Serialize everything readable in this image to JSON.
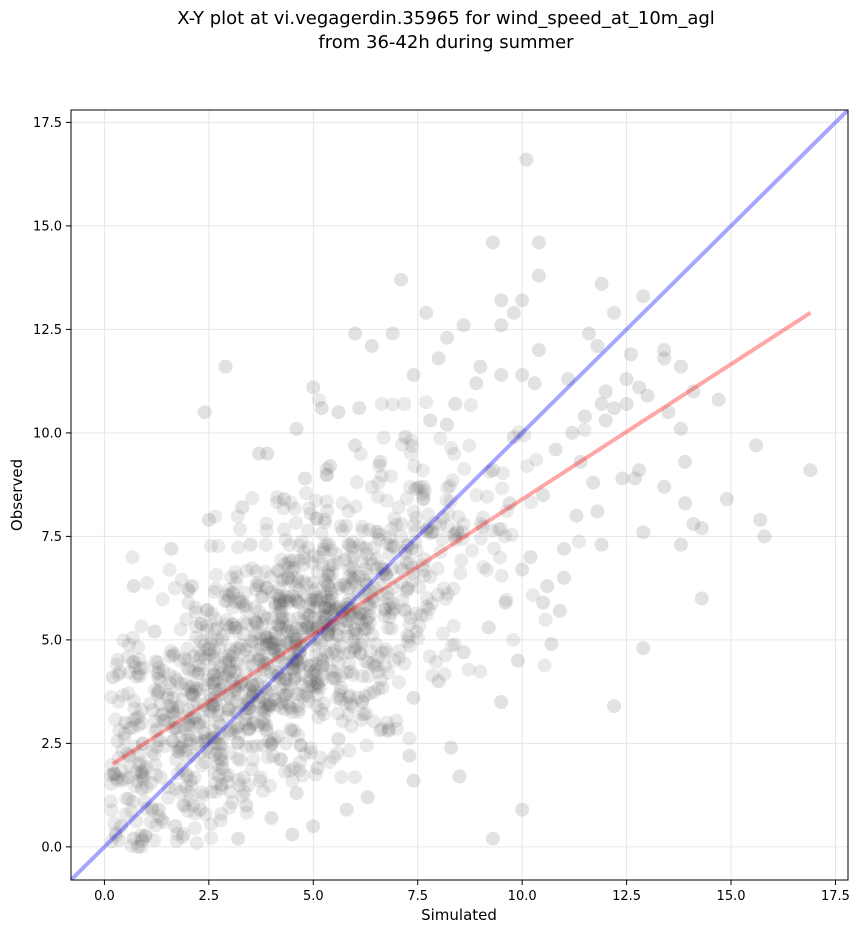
{
  "chart_data": {
    "type": "scatter",
    "title": "X-Y plot at vi.vegagerdin.35965 for wind_speed_at_10m_agl",
    "subtitle": "from 36-42h during summer",
    "xlabel": "Simulated",
    "ylabel": "Observed",
    "xlim": [
      -0.8,
      17.8
    ],
    "ylim": [
      -0.8,
      17.8
    ],
    "xticks": [
      "0.0",
      "2.5",
      "5.0",
      "7.5",
      "10.0",
      "12.5",
      "15.0",
      "17.5"
    ],
    "yticks": [
      "0.0",
      "2.5",
      "5.0",
      "7.5",
      "10.0",
      "12.5",
      "15.0",
      "17.5"
    ],
    "xtick_values": [
      0,
      2.5,
      5,
      7.5,
      10,
      12.5,
      15,
      17.5
    ],
    "ytick_values": [
      0,
      2.5,
      5,
      7.5,
      10,
      12.5,
      15,
      17.5
    ],
    "grid": true,
    "points": [
      [
        10.1,
        16.6
      ],
      [
        9.3,
        14.6
      ],
      [
        10.4,
        14.6
      ],
      [
        10.4,
        13.8
      ],
      [
        7.1,
        13.7
      ],
      [
        11.9,
        13.6
      ],
      [
        12.9,
        13.3
      ],
      [
        9.5,
        13.2
      ],
      [
        10.0,
        13.2
      ],
      [
        9.8,
        12.9
      ],
      [
        7.7,
        12.9
      ],
      [
        12.2,
        12.9
      ],
      [
        9.5,
        12.6
      ],
      [
        8.6,
        12.6
      ],
      [
        6.0,
        12.4
      ],
      [
        11.6,
        12.4
      ],
      [
        6.9,
        12.4
      ],
      [
        8.2,
        12.3
      ],
      [
        11.8,
        12.1
      ],
      [
        6.4,
        12.1
      ],
      [
        10.4,
        12.0
      ],
      [
        13.4,
        12.0
      ],
      [
        12.6,
        11.9
      ],
      [
        8.0,
        11.8
      ],
      [
        13.4,
        11.8
      ],
      [
        2.9,
        11.6
      ],
      [
        13.8,
        11.6
      ],
      [
        9.0,
        11.6
      ],
      [
        9.5,
        11.4
      ],
      [
        7.4,
        11.4
      ],
      [
        10.0,
        11.4
      ],
      [
        11.1,
        11.3
      ],
      [
        12.5,
        11.3
      ],
      [
        10.3,
        11.2
      ],
      [
        12.8,
        11.1
      ],
      [
        5.0,
        11.1
      ],
      [
        14.1,
        11.0
      ],
      [
        12.0,
        11.0
      ],
      [
        13.0,
        10.9
      ],
      [
        14.7,
        10.8
      ],
      [
        12.5,
        10.7
      ],
      [
        11.9,
        10.7
      ],
      [
        12.2,
        10.6
      ],
      [
        6.1,
        10.6
      ],
      [
        5.2,
        10.6
      ],
      [
        2.4,
        10.5
      ],
      [
        5.6,
        10.5
      ],
      [
        13.5,
        10.5
      ],
      [
        11.5,
        10.4
      ],
      [
        12.0,
        10.3
      ],
      [
        8.2,
        10.2
      ],
      [
        4.6,
        10.1
      ],
      [
        13.8,
        10.1
      ],
      [
        11.2,
        10.0
      ],
      [
        3.9,
        9.5
      ],
      [
        3.7,
        9.5
      ],
      [
        15.6,
        9.7
      ],
      [
        16.9,
        9.1
      ],
      [
        13.9,
        9.3
      ],
      [
        12.8,
        9.1
      ],
      [
        12.7,
        8.9
      ],
      [
        12.4,
        8.9
      ],
      [
        11.8,
        8.1
      ],
      [
        11.3,
        8.0
      ],
      [
        13.4,
        8.7
      ],
      [
        14.3,
        7.7
      ],
      [
        14.1,
        7.8
      ],
      [
        13.9,
        8.3
      ],
      [
        14.9,
        8.4
      ],
      [
        15.7,
        7.9
      ],
      [
        15.8,
        7.5
      ],
      [
        13.8,
        7.3
      ],
      [
        12.9,
        7.6
      ],
      [
        11.9,
        7.3
      ],
      [
        11.0,
        7.2
      ],
      [
        10.6,
        6.3
      ],
      [
        10.0,
        6.7
      ],
      [
        11.0,
        6.5
      ],
      [
        10.5,
        5.9
      ],
      [
        10.9,
        5.7
      ],
      [
        12.9,
        4.8
      ],
      [
        12.2,
        3.4
      ],
      [
        14.3,
        6.0
      ],
      [
        9.9,
        4.5
      ],
      [
        10.0,
        0.9
      ],
      [
        9.3,
        0.2
      ],
      [
        10.7,
        4.9
      ],
      [
        9.5,
        3.5
      ],
      [
        8.5,
        1.7
      ],
      [
        8.3,
        2.4
      ],
      [
        7.4,
        1.6
      ],
      [
        7.3,
        2.2
      ],
      [
        6.3,
        1.2
      ],
      [
        5.8,
        0.9
      ],
      [
        5.0,
        0.5
      ],
      [
        4.5,
        0.3
      ],
      [
        3.2,
        0.2
      ],
      [
        0.7,
        0.2
      ],
      [
        0.8,
        0.0
      ],
      [
        0.4,
        0.5
      ],
      [
        0.7,
        6.3
      ],
      [
        1.6,
        7.2
      ],
      [
        2.5,
        7.9
      ],
      [
        3.3,
        8.2
      ],
      [
        4.3,
        8.4
      ],
      [
        1.2,
        5.2
      ],
      [
        2.1,
        6.3
      ],
      [
        3.5,
        7.3
      ],
      [
        4.8,
        8.9
      ],
      [
        5.4,
        9.2
      ],
      [
        6.0,
        9.7
      ],
      [
        6.6,
        9.3
      ],
      [
        7.2,
        9.9
      ],
      [
        7.8,
        10.3
      ],
      [
        8.4,
        10.7
      ],
      [
        8.9,
        11.2
      ],
      [
        9.3,
        9.1
      ],
      [
        9.8,
        9.9
      ],
      [
        0.2,
        4.1
      ],
      [
        0.5,
        3.0
      ],
      [
        0.6,
        2.2
      ],
      [
        0.9,
        1.4
      ],
      [
        1.3,
        0.9
      ],
      [
        1.7,
        0.5
      ],
      [
        2.3,
        0.9
      ],
      [
        2.8,
        1.5
      ],
      [
        3.4,
        1.0
      ],
      [
        4.0,
        0.7
      ],
      [
        4.6,
        1.3
      ],
      [
        5.1,
        1.9
      ],
      [
        5.6,
        2.6
      ],
      [
        6.2,
        3.2
      ],
      [
        6.8,
        2.8
      ],
      [
        7.4,
        3.6
      ],
      [
        8.0,
        4.0
      ],
      [
        8.6,
        4.7
      ],
      [
        9.2,
        5.3
      ],
      [
        9.6,
        5.9
      ],
      [
        10.2,
        7.0
      ],
      [
        10.5,
        8.5
      ],
      [
        11.4,
        9.3
      ],
      [
        11.7,
        8.8
      ],
      [
        10.8,
        9.6
      ],
      [
        9.7,
        8.3
      ]
    ]
  }
}
